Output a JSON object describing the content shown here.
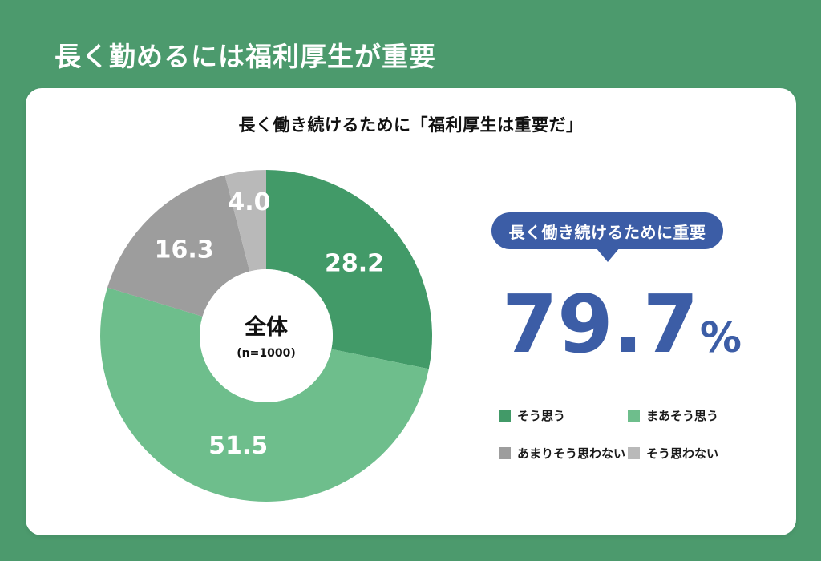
{
  "page": {
    "title": "長く勤めるには福利厚生が重要",
    "background_color": "#4c9a6d"
  },
  "card": {
    "subtitle": "長く働き続けるために「福利厚生は重要だ」"
  },
  "chart_data": {
    "type": "pie",
    "subtype": "donut",
    "title": "長く働き続けるために「福利厚生は重要だ」",
    "center_label": "全体",
    "center_sublabel": "(n=1000)",
    "categories": [
      "そう思う",
      "まあそう思う",
      "あまりそう思わない",
      "そう思わない"
    ],
    "values": [
      28.2,
      51.5,
      16.3,
      4.0
    ],
    "colors": [
      "#429a68",
      "#6ebe8c",
      "#9d9d9d",
      "#b9b9b9"
    ],
    "value_label_color": "#ffffff",
    "start_angle_deg": 0,
    "direction": "clockwise",
    "layout": {
      "outer_radius": 207,
      "inner_radius": 83,
      "label_radii": [
        142,
        142,
        148,
        168
      ]
    }
  },
  "callout": {
    "badge_label": "長く働き続けるために重要",
    "badge_color": "#3c5da6",
    "headline_value": "79.7",
    "headline_unit": "%",
    "headline_color": "#3c5da6"
  },
  "legend": {
    "items": [
      {
        "label": "そう思う",
        "color": "#429a68"
      },
      {
        "label": "まあそう思う",
        "color": "#6ebe8c"
      },
      {
        "label": "あまりそう思わない",
        "color": "#9d9d9d"
      },
      {
        "label": "そう思わない",
        "color": "#b9b9b9"
      }
    ]
  }
}
